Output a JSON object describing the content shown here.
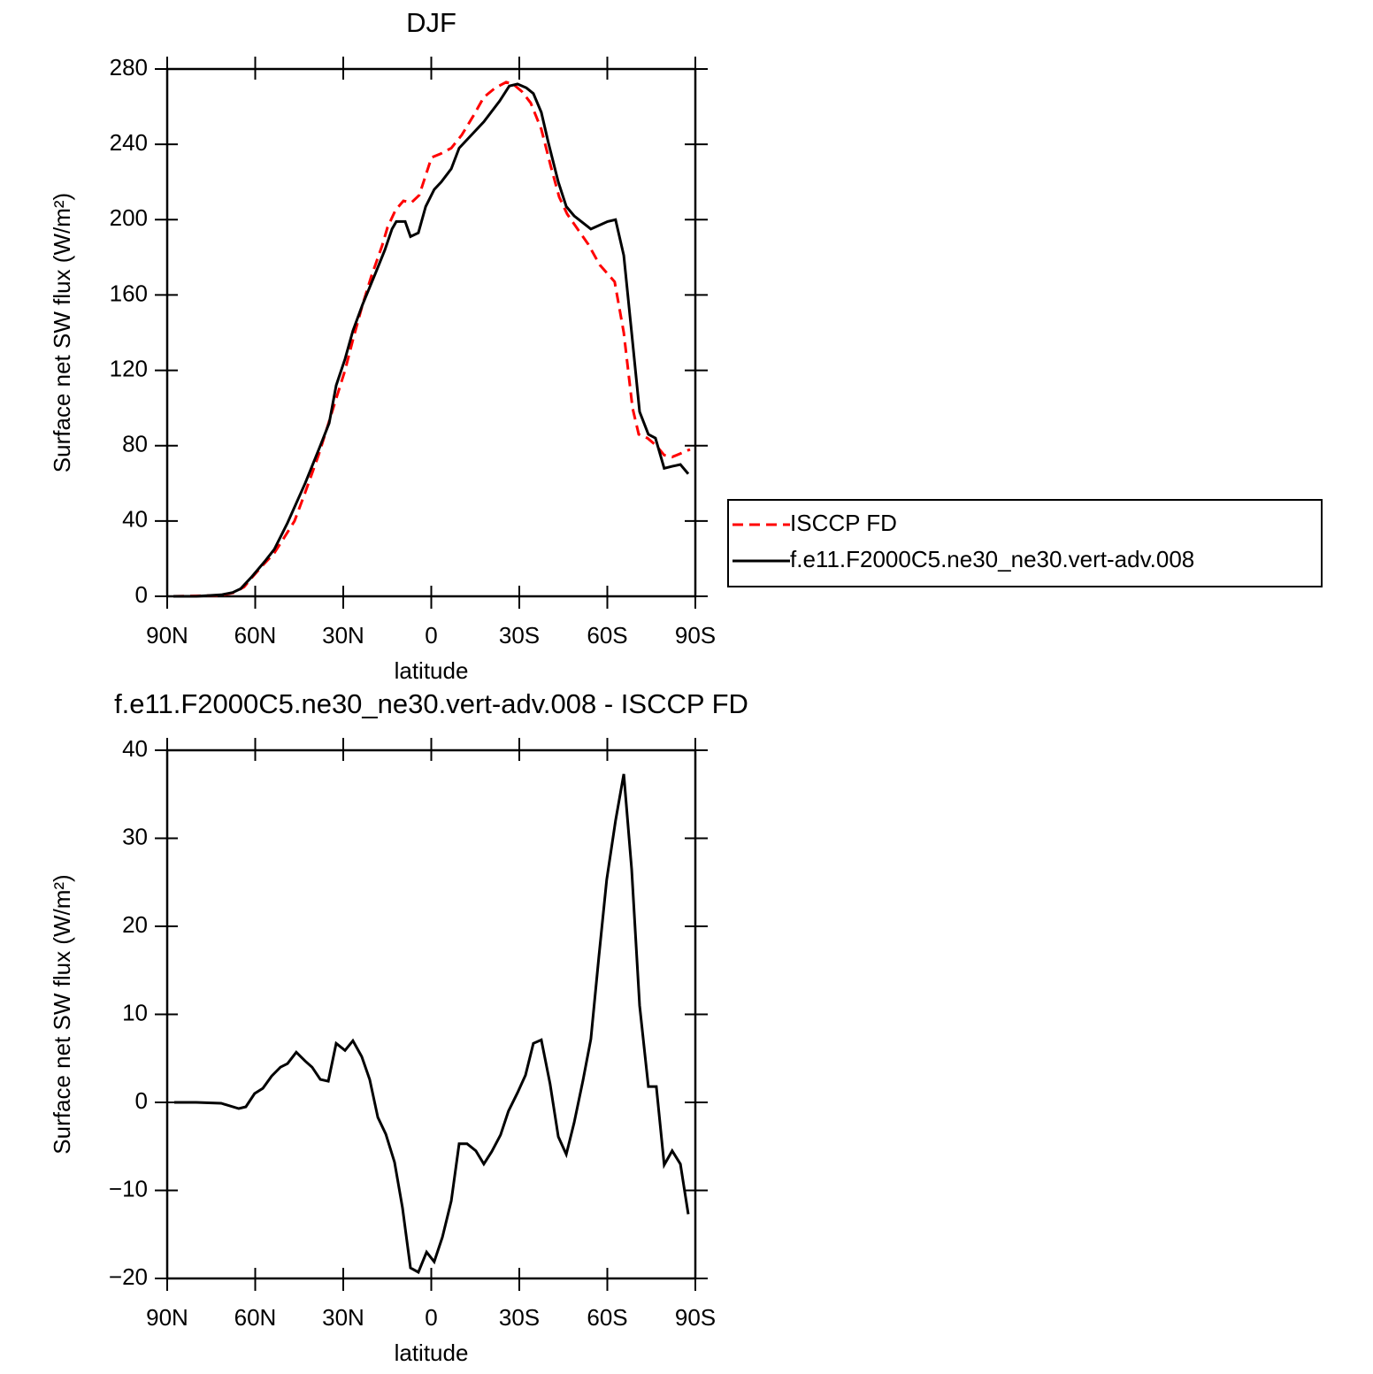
{
  "chart_data": [
    {
      "type": "line",
      "title": "DJF",
      "xlabel": "latitude",
      "ylabel": "Surface net SW flux (W/m²)",
      "xlim": [
        90,
        -90
      ],
      "xticks": [
        {
          "value": 90,
          "label": "90N"
        },
        {
          "value": 60,
          "label": "60N"
        },
        {
          "value": 30,
          "label": "30N"
        },
        0,
        {
          "value": -30,
          "label": "30S"
        },
        {
          "value": -60,
          "label": "60S"
        },
        {
          "value": -90,
          "label": "90S"
        }
      ],
      "ylim": [
        0,
        280
      ],
      "yticks": [
        0,
        40,
        80,
        120,
        160,
        200,
        240,
        280
      ],
      "legend": "right",
      "series": [
        {
          "name": "ISCCP FD",
          "color": "#ff0000",
          "style": "dashed",
          "x": [
            87.9,
            71.6,
            67.1,
            63.8,
            61.1,
            57.7,
            53.5,
            50.2,
            46.6,
            43.0,
            38.4,
            35.4,
            32.4,
            29.4,
            26.4,
            23.4,
            20.4,
            16.8,
            14.9,
            12.2,
            9.5,
            6.8,
            4.1,
            -0.1,
            -3.2,
            -6.8,
            -10.4,
            -14.3,
            -17.9,
            -21.8,
            -25.5,
            -27.9,
            -30.9,
            -33.9,
            -37.5,
            -40.8,
            -43.6,
            -46.3,
            -49.0,
            -53.5,
            -57.4,
            -62.5,
            -65.6,
            -68.6,
            -70.7,
            -73.7,
            -76.7,
            -79.4,
            -82.1,
            -85.2,
            -88.2
          ],
          "values": [
            0,
            0.5,
            2,
            5,
            10,
            16,
            23,
            31,
            40,
            55,
            75,
            90,
            105,
            120,
            138,
            155,
            170,
            186,
            196,
            205,
            210,
            209,
            213,
            233,
            235,
            238,
            245,
            255,
            265,
            270,
            273,
            272,
            268,
            262,
            248,
            228,
            212,
            203,
            197,
            187,
            176,
            167,
            140,
            100,
            86,
            84,
            80,
            75,
            74,
            76,
            78
          ]
        },
        {
          "name": "f.e11.F2000C5.ne30_ne30.vert-adv.008",
          "color": "#000000",
          "style": "solid",
          "x": [
            87.9,
            80.1,
            71.6,
            67.7,
            65.0,
            61.4,
            56.5,
            53.5,
            49.0,
            43.0,
            37.8,
            34.8,
            32.4,
            29.4,
            26.7,
            23.4,
            18.9,
            15.8,
            13.4,
            11.9,
            8.9,
            7.1,
            4.4,
            1.9,
            -1.0,
            -3.4,
            -6.8,
            -9.5,
            -17.9,
            -23.3,
            -26.6,
            -29.4,
            -32.4,
            -34.8,
            -37.5,
            -39.9,
            -43.3,
            -46.0,
            -48.7,
            -54.4,
            -60.1,
            -62.8,
            -65.6,
            -68.3,
            -71.0,
            -74.0,
            -76.4,
            -79.4,
            -82.1,
            -84.9,
            -87.6
          ],
          "values": [
            0,
            0,
            0.8,
            2,
            4,
            10,
            19,
            25,
            39,
            60,
            80,
            92,
            112,
            126,
            141,
            155,
            172,
            184,
            195,
            199,
            199,
            191,
            193,
            207,
            216,
            220,
            227,
            238,
            252,
            263,
            271,
            272,
            270,
            267,
            257,
            241,
            220,
            207,
            202,
            195,
            199,
            200,
            181,
            140,
            98,
            86,
            84,
            68,
            69,
            70,
            65
          ]
        }
      ]
    },
    {
      "type": "line",
      "title": "f.e11.F2000C5.ne30_ne30.vert-adv.008 - ISCCP FD",
      "xlabel": "latitude",
      "ylabel": "Surface net SW flux (W/m²)",
      "xlim": [
        90,
        -90
      ],
      "xticks": [
        {
          "value": 90,
          "label": "90N"
        },
        {
          "value": 60,
          "label": "60N"
        },
        {
          "value": 30,
          "label": "30N"
        },
        0,
        {
          "value": -30,
          "label": "30S"
        },
        {
          "value": -60,
          "label": "60S"
        },
        {
          "value": -90,
          "label": "90S"
        }
      ],
      "ylim": [
        -20,
        40
      ],
      "yticks": [
        {
          "value": -20,
          "label": "−20"
        },
        {
          "value": -10,
          "label": "−10"
        },
        0,
        10,
        20,
        30,
        40
      ],
      "series": [
        {
          "color": "#000000",
          "style": "solid",
          "x": [
            87.6,
            80.1,
            71.6,
            65.6,
            63.2,
            60.2,
            57.4,
            54.4,
            51.4,
            49.0,
            46.0,
            43.0,
            40.6,
            37.8,
            35.1,
            32.4,
            29.4,
            26.7,
            23.7,
            21.0,
            18.2,
            15.5,
            12.5,
            9.8,
            7.1,
            4.4,
            1.6,
            -1.0,
            -3.8,
            -6.8,
            -9.5,
            -12.2,
            -15.2,
            -17.9,
            -20.6,
            -23.6,
            -26.3,
            -29.4,
            -32.1,
            -34.8,
            -37.5,
            -40.5,
            -43.3,
            -46.0,
            -48.7,
            -51.7,
            -54.4,
            -57.1,
            -59.8,
            -62.8,
            -65.6,
            -68.3,
            -71.0,
            -74.0,
            -76.7,
            -79.4,
            -82.1,
            -84.9,
            -87.6
          ],
          "values": [
            0,
            0,
            -0.1,
            -0.7,
            -0.5,
            1,
            1.6,
            3,
            4,
            4.4,
            5.7,
            4.7,
            4,
            2.6,
            2.4,
            6.7,
            5.9,
            7,
            5.2,
            2.6,
            -1.7,
            -3.6,
            -6.8,
            -12,
            -18.8,
            -19.3,
            -17,
            -18.1,
            -15.3,
            -11.2,
            -4.7,
            -4.7,
            -5.5,
            -7,
            -5.6,
            -3.7,
            -1,
            1.1,
            3.1,
            6.7,
            7.1,
            2.1,
            -3.9,
            -5.9,
            -2.3,
            2.5,
            7.2,
            16.5,
            25.3,
            32,
            37.3,
            26.5,
            11,
            1.8,
            1.8,
            -7.1,
            -5.5,
            -7,
            -12.7
          ]
        }
      ]
    }
  ]
}
